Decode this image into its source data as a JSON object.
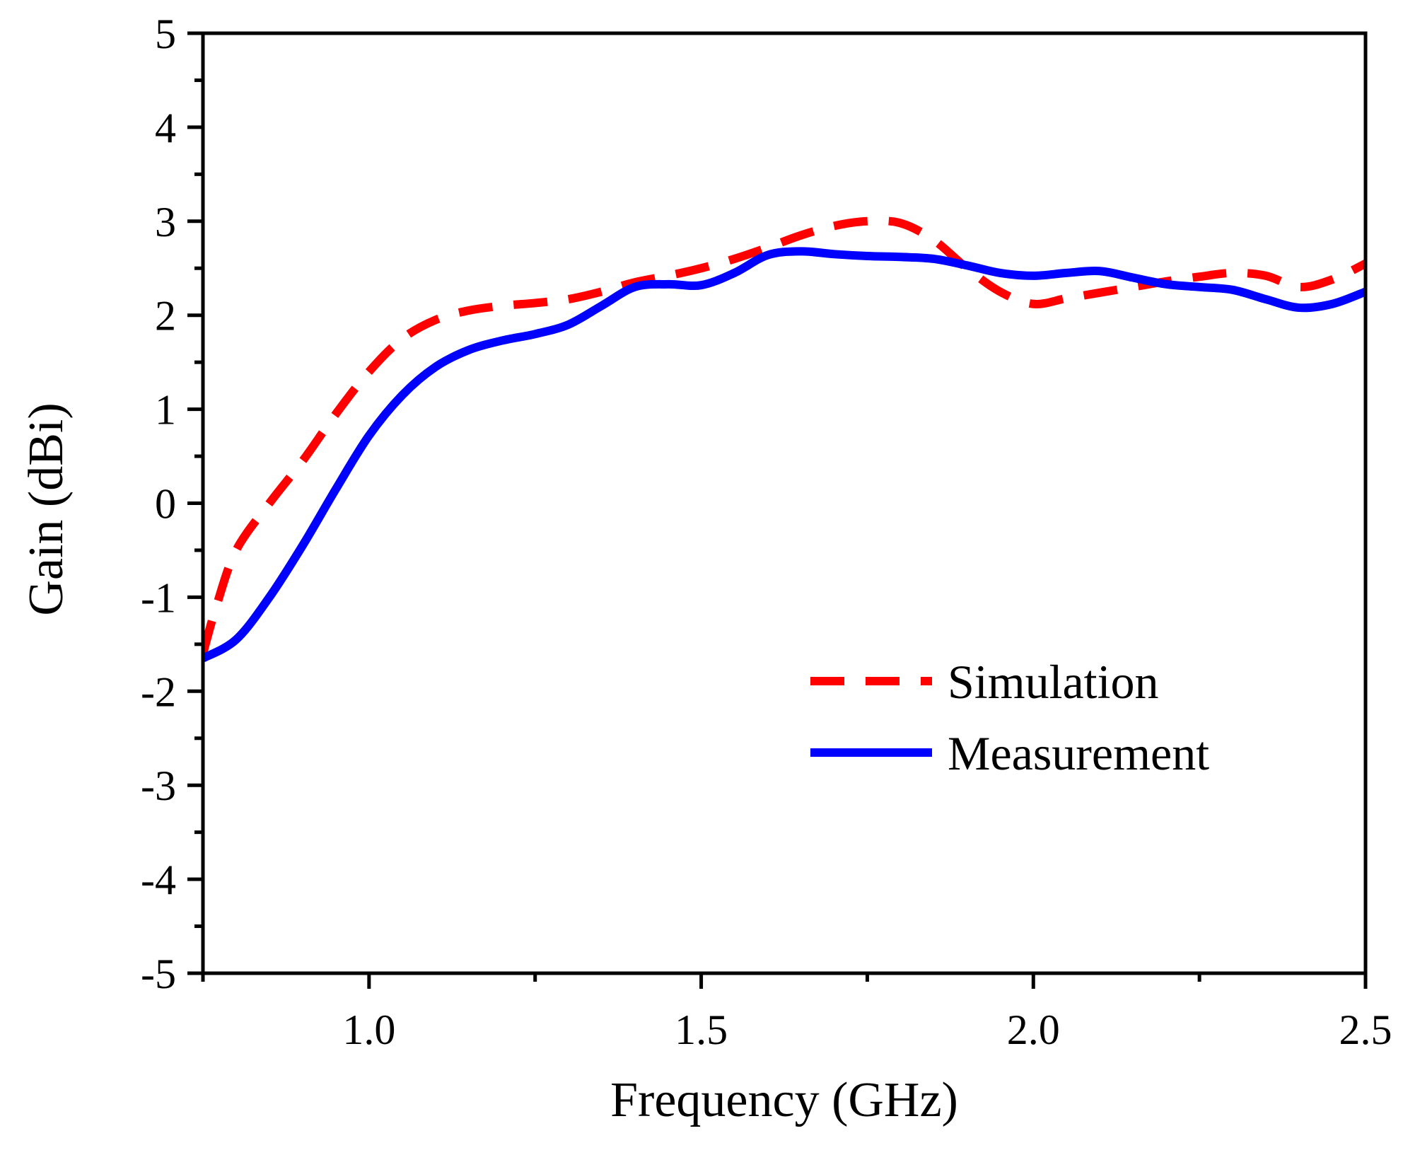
{
  "chart_data": {
    "type": "line",
    "title": "",
    "xlabel": "Frequency (GHz)",
    "ylabel": "Gain (dBi)",
    "xlim": [
      0.75,
      2.5
    ],
    "ylim": [
      -5,
      5
    ],
    "x_ticks": [
      1.0,
      1.5,
      2.0,
      2.5
    ],
    "x_tick_labels": [
      "1.0",
      "1.5",
      "2.0",
      "2.5"
    ],
    "y_ticks": [
      -5,
      -4,
      -3,
      -2,
      -1,
      0,
      1,
      2,
      3,
      4,
      5
    ],
    "y_tick_labels": [
      "-5",
      "-4",
      "-3",
      "-2",
      "-1",
      "0",
      "1",
      "2",
      "3",
      "4",
      "5"
    ],
    "grid": false,
    "legend_position": "lower-right",
    "series": [
      {
        "name": "Simulation",
        "color": "#ff0000",
        "style": "dashed",
        "x": [
          0.75,
          0.77,
          0.8,
          0.85,
          0.9,
          0.95,
          1.0,
          1.05,
          1.1,
          1.15,
          1.2,
          1.25,
          1.3,
          1.35,
          1.4,
          1.45,
          1.5,
          1.55,
          1.6,
          1.65,
          1.7,
          1.75,
          1.8,
          1.85,
          1.9,
          1.95,
          2.0,
          2.05,
          2.1,
          2.15,
          2.2,
          2.25,
          2.3,
          2.35,
          2.4,
          2.45,
          2.5
        ],
        "values": [
          -1.6,
          -1.1,
          -0.5,
          0.0,
          0.45,
          0.95,
          1.4,
          1.75,
          1.95,
          2.05,
          2.1,
          2.13,
          2.17,
          2.25,
          2.35,
          2.42,
          2.5,
          2.6,
          2.72,
          2.85,
          2.95,
          3.0,
          2.98,
          2.8,
          2.5,
          2.25,
          2.12,
          2.18,
          2.24,
          2.3,
          2.36,
          2.41,
          2.45,
          2.42,
          2.3,
          2.38,
          2.55
        ]
      },
      {
        "name": "Measurement",
        "color": "#0000ff",
        "style": "solid",
        "x": [
          0.75,
          0.8,
          0.85,
          0.9,
          0.95,
          1.0,
          1.05,
          1.1,
          1.15,
          1.2,
          1.25,
          1.3,
          1.35,
          1.4,
          1.45,
          1.5,
          1.55,
          1.6,
          1.65,
          1.7,
          1.75,
          1.8,
          1.85,
          1.9,
          1.95,
          2.0,
          2.05,
          2.1,
          2.15,
          2.2,
          2.25,
          2.3,
          2.35,
          2.4,
          2.45,
          2.5
        ],
        "values": [
          -1.65,
          -1.45,
          -1.0,
          -0.45,
          0.15,
          0.72,
          1.15,
          1.45,
          1.63,
          1.73,
          1.8,
          1.9,
          2.1,
          2.3,
          2.33,
          2.32,
          2.45,
          2.64,
          2.68,
          2.65,
          2.63,
          2.62,
          2.6,
          2.53,
          2.45,
          2.42,
          2.45,
          2.47,
          2.4,
          2.33,
          2.3,
          2.27,
          2.17,
          2.08,
          2.12,
          2.25
        ]
      }
    ]
  }
}
